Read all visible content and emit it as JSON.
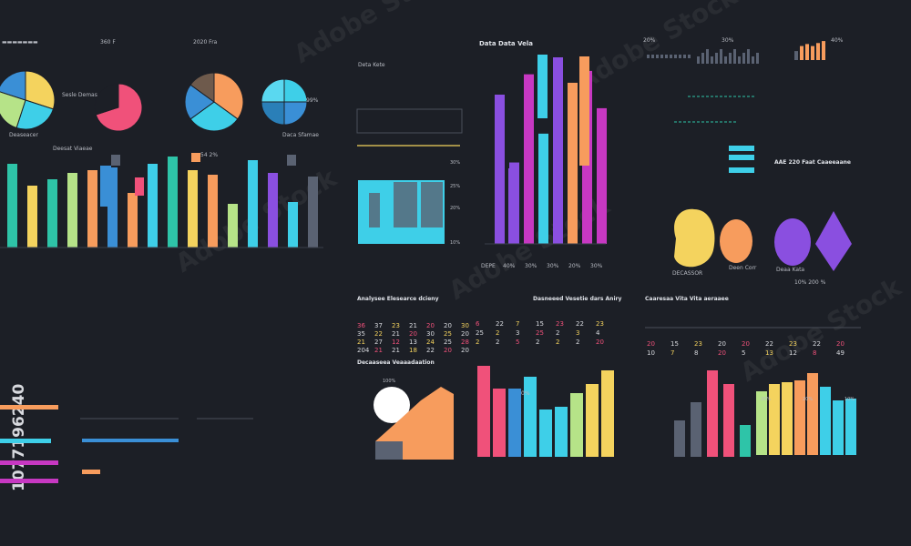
{
  "labels": {
    "h1": "Data Data Vela",
    "h1b": "Deta Kete",
    "h2": "Analysee Elesearce dcieny",
    "h3": "Dasneeed Vesetie dars Aniry",
    "h4": "Caaresaa Vita Vita aeraaee",
    "h5": "Decaaseea Veaaadaation",
    "h6": "DEECASSOR",
    "h7": "DEPE",
    "h8": "Deaa Kata",
    "side_id": "1077196240",
    "brand": "Adobe Stock",
    "hdr_b": "360 F",
    "hdr_c": "2020 Fra",
    "pie_a": "Sesle Demas",
    "pie_b": "Deaseacer",
    "pie_c": "Deesat Viaeae",
    "pie_d": "Daca Sfamae",
    "pct1": "99%",
    "pct2": "0%",
    "pct3": "10%",
    "pct4": "20%",
    "pct5": "30%",
    "pct6": "40%",
    "blob_a": "DECASSOR",
    "blob_b": "Deen Corr",
    "blob_c": "Deaa Kata",
    "blob_d": "10% 200 %",
    "right_t1": "AAE 220 Faat Caaeeaane",
    "tl_val": "54 2%"
  },
  "colors": {
    "bg": "#1c1f26",
    "teal": "#2ec4a8",
    "yellow": "#f4d35e",
    "orange": "#f79c5d",
    "cyan": "#3ecfe8",
    "blue": "#3a8fd6",
    "purple": "#8a4fe0",
    "magenta": "#c738c2",
    "pink": "#f0517a",
    "lime": "#b6e388",
    "gray": "#5a6272"
  },
  "chart_data": [
    {
      "type": "pie",
      "values": [
        30,
        25,
        25,
        20
      ],
      "colors": [
        "#f4d35e",
        "#3ecfe8",
        "#b6e388",
        "#3a8fd6"
      ]
    },
    {
      "type": "pie",
      "values": [
        70,
        30
      ],
      "colors": [
        "#f0517a",
        "#1c1f26"
      ]
    },
    {
      "type": "pie",
      "values": [
        35,
        30,
        20,
        15
      ],
      "colors": [
        "#f79c5d",
        "#3ecfe8",
        "#3a8fd6",
        "#6e5a4c"
      ]
    },
    {
      "type": "pie",
      "values": [
        25,
        25,
        25,
        25
      ],
      "colors": [
        "#3ecfe8",
        "#3a8fd6",
        "#2a7fb8",
        "#5ad8f0"
      ],
      "pct_label": "99%"
    },
    {
      "type": "bar",
      "values": [
        92,
        68,
        75,
        82,
        85,
        88,
        60,
        92,
        100,
        85,
        80,
        48,
        96,
        82,
        50,
        78
      ],
      "colors": [
        "#2ec4a8",
        "#f4d35e",
        "#2ec4a8",
        "#b6e388",
        "#f79c5d",
        "#3a8fd6",
        "#f79c5d",
        "#3ecfe8",
        "#2ec4a8",
        "#f4d35e",
        "#f79c5d",
        "#b6e388",
        "#3ecfe8",
        "#8a4fe0",
        "#3ecfe8",
        "#5a6272"
      ],
      "ylim": [
        0,
        100
      ]
    },
    {
      "type": "area",
      "y_tick_labels": [
        "30%",
        "25%",
        "20%",
        "10%"
      ]
    },
    {
      "type": "bar",
      "x_tick_labels": [
        "DEPE",
        "40%",
        "30%",
        "30%",
        "20%",
        "30%"
      ],
      "values": [
        88,
        48,
        100,
        65,
        110,
        95,
        102,
        80
      ],
      "colors": [
        "#8a4fe0",
        "#8a4fe0",
        "#c738c2",
        "#3ecfe8",
        "#8a4fe0",
        "#f79c5d",
        "#c738c2",
        "#c738c2"
      ],
      "ylim": [
        0,
        110
      ]
    },
    {
      "type": "bar",
      "values": [
        45,
        70,
        80,
        70,
        85,
        95
      ],
      "colors": [
        "#5a6272",
        "#f79c5d",
        "#f79c5d",
        "#f79c5d",
        "#f79c5d",
        "#f79c5d"
      ],
      "ylim": [
        0,
        100
      ]
    },
    {
      "type": "table",
      "rows": [
        [
          "36",
          "37",
          "23",
          "21",
          "20",
          "20",
          "30"
        ],
        [
          "35",
          "22",
          "21",
          "20",
          "30",
          "25",
          "20"
        ],
        [
          "21",
          "27",
          "12",
          "13",
          "24",
          "25",
          "28"
        ],
        [
          "204",
          "21",
          "21",
          "18",
          "22",
          "20",
          "20"
        ]
      ]
    },
    {
      "type": "table",
      "rows": [
        [
          "6",
          "22",
          "7",
          "15",
          "23",
          "22",
          "23"
        ],
        [
          "25",
          "2",
          "3",
          "25",
          "2",
          "3",
          "4"
        ],
        [
          "2",
          "2",
          "5",
          "2",
          "2",
          "2",
          "20"
        ]
      ]
    },
    {
      "type": "table",
      "rows": [
        [
          "20",
          "15",
          "23",
          "20",
          "20",
          "22",
          "23",
          "22",
          "20"
        ],
        [
          "10",
          "7",
          "8",
          "20",
          "5",
          "13",
          "12",
          "8",
          "49"
        ]
      ]
    },
    {
      "type": "area",
      "pct_label": "100%",
      "values": [
        20,
        45,
        65,
        80,
        72
      ]
    },
    {
      "type": "bar",
      "values": [
        100,
        75,
        75,
        88,
        52,
        55,
        70,
        80,
        95
      ],
      "colors": [
        "#f0517a",
        "#f0517a",
        "#3a8fd6",
        "#3ecfe8",
        "#3ecfe8",
        "#3ecfe8",
        "#b6e388",
        "#f4d35e",
        "#f4d35e"
      ],
      "pct_label": "0%",
      "ylim": [
        0,
        100
      ]
    },
    {
      "type": "bar",
      "values": [
        40,
        60,
        95,
        80,
        35
      ],
      "colors": [
        "#5a6272",
        "#5a6272",
        "#f0517a",
        "#f0517a",
        "#2ec4a8"
      ],
      "ylim": [
        0,
        100
      ]
    },
    {
      "type": "bar",
      "values": [
        70,
        78,
        80,
        82,
        90,
        75,
        60,
        62
      ],
      "colors": [
        "#b6e388",
        "#f4d35e",
        "#f4d35e",
        "#f79c5d",
        "#f79c5d",
        "#3ecfe8",
        "#3ecfe8",
        "#3ecfe8"
      ],
      "pct_labels": [
        "20%",
        "20%",
        "10%"
      ],
      "ylim": [
        0,
        100
      ]
    }
  ]
}
